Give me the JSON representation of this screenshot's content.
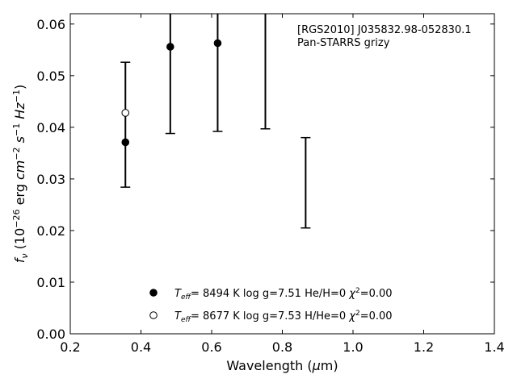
{
  "chart_data": {
    "type": "scatter",
    "title": "",
    "xlabel": "Wavelength (μm)",
    "ylabel": "f_ν (10^-26 erg cm^-2 s^-1 Hz^-1)",
    "xlim": [
      0.2,
      1.4
    ],
    "ylim": [
      0.0,
      0.062
    ],
    "x_ticks": [
      0.2,
      0.4,
      0.6,
      0.8,
      1.0,
      1.2,
      1.4
    ],
    "x_tick_labels": [
      "0.2",
      "0.4",
      "0.6",
      "0.8",
      "1.0",
      "1.2",
      "1.4"
    ],
    "y_ticks": [
      0.0,
      0.01,
      0.02,
      0.03,
      0.04,
      0.05,
      0.06
    ],
    "y_tick_labels": [
      "0.00",
      "0.01",
      "0.02",
      "0.03",
      "0.04",
      "0.05",
      "0.06"
    ],
    "grid": false,
    "legend_position": "bottom-center",
    "annotation": {
      "line1": "[RGS2010] J035832.98-052830.1",
      "line2": "Pan-STARRS grizy"
    },
    "errorbars": [
      {
        "x": 0.356,
        "y_low": 0.0284,
        "y_high": 0.0526
      },
      {
        "x": 0.483,
        "y_low": 0.0388,
        "y_high": 0.062
      },
      {
        "x": 0.617,
        "y_low": 0.0392,
        "y_high": 0.062
      },
      {
        "x": 0.752,
        "y_low": 0.0397,
        "y_high": 0.062
      },
      {
        "x": 0.866,
        "y_low": 0.0205,
        "y_high": 0.038
      }
    ],
    "series": [
      {
        "name": "Teff= 8494 K log g=7.51 He/H=0 χ2=0.00",
        "marker": "filled-circle",
        "x": [
          0.356,
          0.483,
          0.617
        ],
        "y": [
          0.0371,
          0.0556,
          0.0563
        ]
      },
      {
        "name": "Teff= 8677 K log g=7.53 H/He=0 χ2=0.00",
        "marker": "open-circle",
        "x": [
          0.356
        ],
        "y": [
          0.0428
        ]
      }
    ],
    "legend": [
      {
        "teff_label": "T",
        "teff_sub": "eff",
        "text": "=  8494 K  log g=7.51  He/H=0  ",
        "chi": "χ",
        "chi_sup": "2",
        "chi_val": "=0.00"
      },
      {
        "teff_label": "T",
        "teff_sub": "eff",
        "text": "=  8677 K  log g=7.53  H/He=0  ",
        "chi": "χ",
        "chi_sup": "2",
        "chi_val": "=0.00"
      }
    ]
  }
}
